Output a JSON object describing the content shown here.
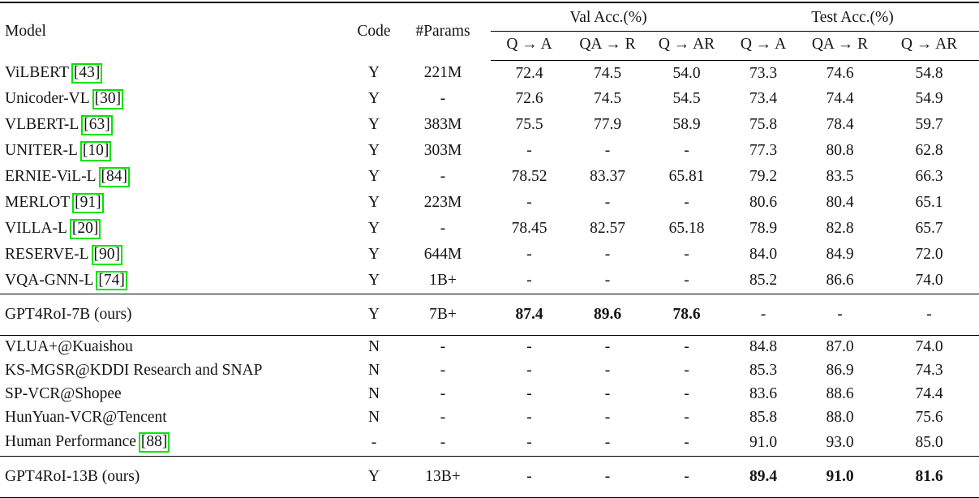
{
  "accent": {
    "citation_box_color": "#00e400",
    "rule_color": "#000000"
  },
  "header": {
    "model": "Model",
    "code": "Code",
    "params": "#Params",
    "val_group": "Val Acc.(%)",
    "test_group": "Test Acc.(%)",
    "sub": [
      "Q → A",
      "QA → R",
      "Q → AR",
      "Q → A",
      "QA → R",
      "Q → AR"
    ]
  },
  "sections": [
    {
      "rows": [
        {
          "model": "ViLBERT",
          "cite": "[43]",
          "code": "Y",
          "params": "221M",
          "v1": "72.4",
          "v2": "74.5",
          "v3": "54.0",
          "t1": "73.3",
          "t2": "74.6",
          "t3": "54.8"
        },
        {
          "model": "Unicoder-VL",
          "cite": "[30]",
          "code": "Y",
          "params": "-",
          "v1": "72.6",
          "v2": "74.5",
          "v3": "54.5",
          "t1": "73.4",
          "t2": "74.4",
          "t3": "54.9"
        },
        {
          "model": "VLBERT-L",
          "cite": "[63]",
          "code": "Y",
          "params": "383M",
          "v1": "75.5",
          "v2": "77.9",
          "v3": "58.9",
          "t1": "75.8",
          "t2": "78.4",
          "t3": "59.7"
        },
        {
          "model": "UNITER-L",
          "cite": "[10]",
          "code": "Y",
          "params": "303M",
          "v1": "-",
          "v2": "-",
          "v3": "-",
          "t1": "77.3",
          "t2": "80.8",
          "t3": "62.8"
        },
        {
          "model": "ERNIE-ViL-L",
          "cite": "[84]",
          "code": "Y",
          "params": "-",
          "v1": "78.52",
          "v2": "83.37",
          "v3": "65.81",
          "t1": "79.2",
          "t2": "83.5",
          "t3": "66.3"
        },
        {
          "model": "MERLOT",
          "cite": "[91]",
          "code": "Y",
          "params": "223M",
          "v1": "-",
          "v2": "-",
          "v3": "-",
          "t1": "80.6",
          "t2": "80.4",
          "t3": "65.1"
        },
        {
          "model": "VILLA-L",
          "cite": "[20]",
          "code": "Y",
          "params": "-",
          "v1": "78.45",
          "v2": "82.57",
          "v3": "65.18",
          "t1": "78.9",
          "t2": "82.8",
          "t3": "65.7"
        },
        {
          "model": "RESERVE-L",
          "cite": "[90]",
          "code": "Y",
          "params": "644M",
          "v1": "-",
          "v2": "-",
          "v3": "-",
          "t1": "84.0",
          "t2": "84.9",
          "t3": "72.0"
        },
        {
          "model": "VQA-GNN-L",
          "cite": "[74]",
          "code": "Y",
          "params": "1B+",
          "v1": "-",
          "v2": "-",
          "v3": "-",
          "t1": "85.2",
          "t2": "86.6",
          "t3": "74.0"
        }
      ]
    },
    {
      "rows": [
        {
          "model": "GPT4RoI-7B (ours)",
          "cite": "",
          "code": "Y",
          "params": "7B+",
          "v1": "87.4",
          "v2": "89.6",
          "v3": "78.6",
          "t1": "-",
          "t2": "-",
          "t3": "-"
        }
      ]
    },
    {
      "rows": [
        {
          "model": "VLUA+@Kuaishou",
          "cite": "",
          "code": "N",
          "params": "-",
          "v1": "-",
          "v2": "-",
          "v3": "-",
          "t1": "84.8",
          "t2": "87.0",
          "t3": "74.0"
        },
        {
          "model": "KS-MGSR@KDDI Research and SNAP",
          "cite": "",
          "code": "N",
          "params": "-",
          "v1": "-",
          "v2": "-",
          "v3": "-",
          "t1": "85.3",
          "t2": "86.9",
          "t3": "74.3"
        },
        {
          "model": "SP-VCR@Shopee",
          "cite": "",
          "code": "N",
          "params": "-",
          "v1": "-",
          "v2": "-",
          "v3": "-",
          "t1": "83.6",
          "t2": "88.6",
          "t3": "74.4"
        },
        {
          "model": "HunYuan-VCR@Tencent",
          "cite": "",
          "code": "N",
          "params": "-",
          "v1": "-",
          "v2": "-",
          "v3": "-",
          "t1": "85.8",
          "t2": "88.0",
          "t3": "75.6"
        },
        {
          "model": "Human Performance",
          "cite": "[88]",
          "code": "-",
          "params": "-",
          "v1": "-",
          "v2": "-",
          "v3": "-",
          "t1": "91.0",
          "t2": "93.0",
          "t3": "85.0"
        }
      ]
    },
    {
      "rows": [
        {
          "model": "GPT4RoI-13B (ours)",
          "cite": "",
          "code": "Y",
          "params": "13B+",
          "v1": "-",
          "v2": "-",
          "v3": "-",
          "t1": "89.4",
          "t2": "91.0",
          "t3": "81.6"
        }
      ]
    }
  ]
}
